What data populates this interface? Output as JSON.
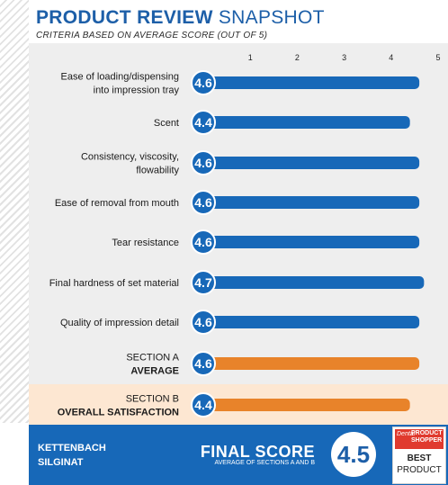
{
  "header": {
    "title_bold": "PRODUCT REVIEW",
    "title_light": "SNAPSHOT",
    "subtitle": "CRITERIA BASED ON AVERAGE SCORE (OUT OF 5)"
  },
  "chart_data": {
    "type": "bar",
    "orientation": "horizontal",
    "xlim": [
      0,
      5
    ],
    "ticks": [
      "1",
      "2",
      "3",
      "4",
      "5"
    ],
    "rows": [
      {
        "label": [
          "Ease of loading/dispensing",
          "into impression tray"
        ],
        "value": 4.6,
        "score": "4.6",
        "kind": "criterion"
      },
      {
        "label": [
          "Scent"
        ],
        "value": 4.4,
        "score": "4.4",
        "kind": "criterion"
      },
      {
        "label": [
          "Consistency, viscosity,",
          "flowability"
        ],
        "value": 4.6,
        "score": "4.6",
        "kind": "criterion"
      },
      {
        "label": [
          "Ease of removal from mouth"
        ],
        "value": 4.6,
        "score": "4.6",
        "kind": "criterion"
      },
      {
        "label": [
          "Tear resistance"
        ],
        "value": 4.6,
        "score": "4.6",
        "kind": "criterion"
      },
      {
        "label": [
          "Final hardness of set material"
        ],
        "value": 4.7,
        "score": "4.7",
        "kind": "criterion"
      },
      {
        "label": [
          "Quality of impression detail"
        ],
        "value": 4.6,
        "score": "4.6",
        "kind": "criterion"
      },
      {
        "label": [
          "SECTION A",
          "AVERAGE"
        ],
        "value": 4.6,
        "score": "4.6",
        "kind": "section"
      },
      {
        "label": [
          "SECTION B",
          "OVERALL SATISFACTION"
        ],
        "value": 4.4,
        "score": "4.4",
        "kind": "section"
      }
    ],
    "colors": {
      "criterion": "#1768b8",
      "section": "#e8832a",
      "circle": "#1768b8"
    }
  },
  "footer": {
    "product_line1": "KETTENBACH",
    "product_line2": "SILGINAT",
    "final_title": "FINAL SCORE",
    "final_sub": "AVERAGE OF SECTIONS A AND B",
    "final_score": "4.5",
    "badge_dental": "Dental",
    "badge_ps1": "PRODUCT",
    "badge_ps2": "SHOPPER",
    "badge_best": "BEST",
    "badge_product": "PRODUCT"
  }
}
